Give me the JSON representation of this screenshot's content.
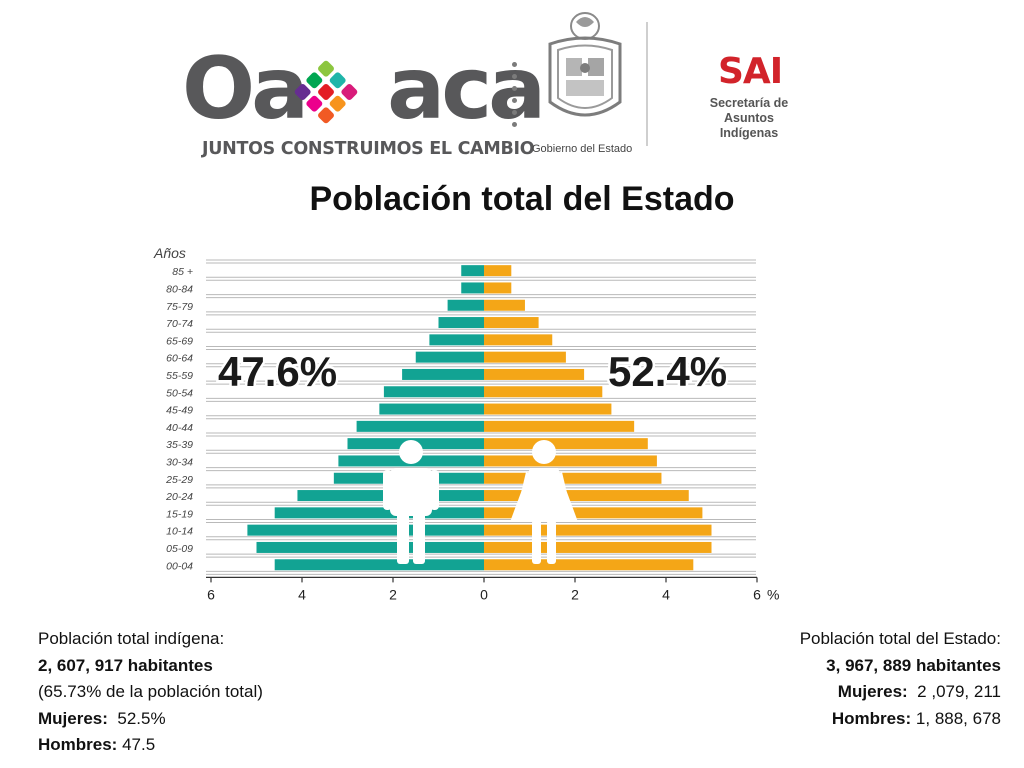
{
  "header": {
    "oaxaca_logo_left": "Oa",
    "oaxaca_logo_right": "aca",
    "oaxaca_slogan": "JUNTOS CONSTRUIMOS EL CAMBIO",
    "government_caption": "Gobierno del Estado",
    "sai_logo": "SAI",
    "sai_subtitle_line1": "Secretaría de",
    "sai_subtitle_line2": "Asuntos Indígenas",
    "colors": {
      "logo_gray": "#58585a",
      "sai_red": "#d2232a"
    }
  },
  "title": "Población total del Estado",
  "chart_data": {
    "type": "bar",
    "subtype": "population-pyramid",
    "y_axis_label": "Años",
    "x_unit": "%",
    "categories": [
      "85 +",
      "80-84",
      "75-79",
      "70-74",
      "65-69",
      "60-64",
      "55-59",
      "50-54",
      "45-49",
      "40-44",
      "35-39",
      "30-34",
      "25-29",
      "20-24",
      "15-19",
      "10-14",
      "05-09",
      "00-04"
    ],
    "series": [
      {
        "side": "left",
        "color": "#12a393",
        "values": [
          0.5,
          0.5,
          0.8,
          1.0,
          1.2,
          1.5,
          1.8,
          2.2,
          2.3,
          2.8,
          3.0,
          3.2,
          3.3,
          4.1,
          4.6,
          5.2,
          5.0,
          4.6
        ]
      },
      {
        "side": "right",
        "color": "#f4a617",
        "values": [
          0.6,
          0.6,
          0.9,
          1.2,
          1.5,
          1.8,
          2.2,
          2.6,
          2.8,
          3.3,
          3.6,
          3.8,
          3.9,
          4.5,
          4.8,
          5.0,
          5.0,
          4.6
        ]
      }
    ],
    "x_ticks": [
      "6",
      "4",
      "2",
      "0",
      "2",
      "4",
      "6"
    ],
    "xlim": [
      -6,
      6
    ],
    "left_percentage": "47.6%",
    "right_percentage": "52.4%",
    "grid": true,
    "icons": [
      "man-icon",
      "woman-icon"
    ]
  },
  "footer": {
    "left": {
      "line1": "Población total indígena:",
      "line2": "2, 607, 917 habitantes",
      "line3": "(65.73% de la población  total)",
      "women_label": "Mujeres:",
      "women_value": "52.5%",
      "men_label": "Hombres:",
      "men_value": "47.5"
    },
    "right": {
      "line1": "Población total del Estado:",
      "line2": "3, 967, 889 habitantes",
      "women_label": "Mujeres:",
      "women_value": "2 ,079, 211",
      "men_label": "Hombres:",
      "men_value": "1, 888, 678"
    }
  }
}
